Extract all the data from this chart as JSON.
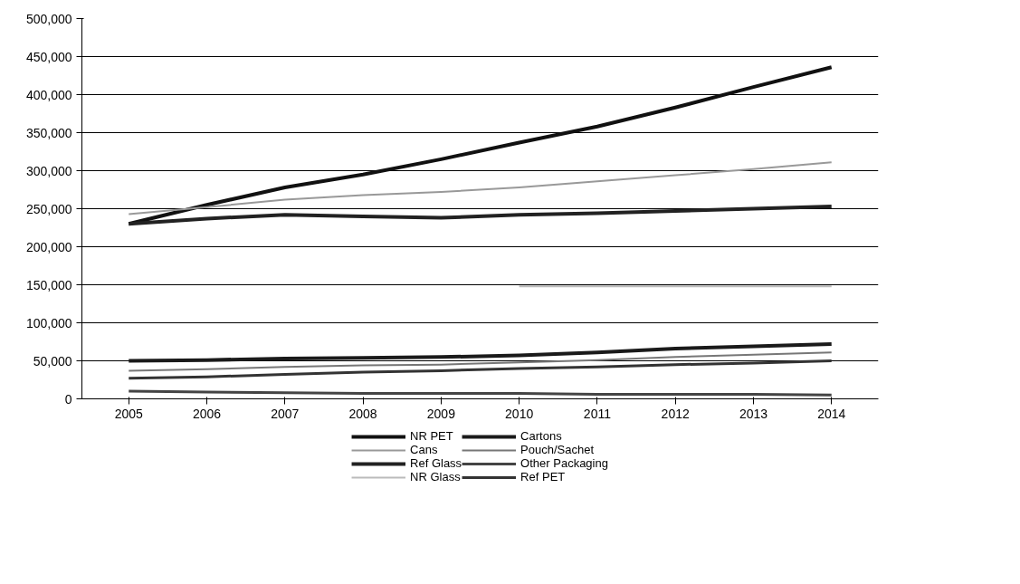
{
  "chart_data": {
    "type": "line",
    "categories": [
      "2005",
      "2006",
      "2007",
      "2008",
      "2009",
      "2010",
      "2011",
      "2012",
      "2013",
      "2014"
    ],
    "series": [
      {
        "name": "NR PET",
        "color": "#111111",
        "values": [
          230000,
          255000,
          278000,
          295000,
          315000,
          337000,
          358000,
          383000,
          410000,
          436000
        ]
      },
      {
        "name": "Cans",
        "color": "#999999",
        "values": [
          243000,
          252000,
          262000,
          268000,
          272000,
          278000,
          286000,
          294000,
          302000,
          311000
        ]
      },
      {
        "name": "Ref Glass",
        "color": "#222222",
        "values": [
          230000,
          237000,
          242000,
          240000,
          238000,
          242000,
          244000,
          247000,
          250000,
          253000
        ]
      },
      {
        "name": "NR Glass",
        "color": "#bbbbbb",
        "values": [
          null,
          null,
          null,
          null,
          null,
          148000,
          148000,
          148000,
          148000,
          148000
        ]
      },
      {
        "name": "Cartons",
        "color": "#1a1a1a",
        "values": [
          50000,
          51000,
          53000,
          54000,
          55000,
          57000,
          61000,
          66000,
          69000,
          72000
        ]
      },
      {
        "name": "Pouch/Sachet",
        "color": "#777777",
        "values": [
          37000,
          39000,
          42000,
          44000,
          45000,
          48000,
          51000,
          55000,
          58000,
          61000
        ]
      },
      {
        "name": "Other Packaging",
        "color": "#444444",
        "values": [
          10000,
          9000,
          8000,
          7000,
          7000,
          7000,
          6000,
          6000,
          6000,
          5000
        ]
      },
      {
        "name": "Ref PET",
        "color": "#333333",
        "values": [
          27000,
          29000,
          32000,
          35000,
          37000,
          40000,
          42000,
          45000,
          47000,
          50000
        ]
      }
    ],
    "ylim": [
      0,
      500000
    ],
    "yticks": [
      {
        "value": 0,
        "label": "0"
      },
      {
        "value": 50000,
        "label": "50,000"
      },
      {
        "value": 100000,
        "label": "100,000"
      },
      {
        "value": 150000,
        "label": "150,000"
      },
      {
        "value": 200000,
        "label": "200,000"
      },
      {
        "value": 250000,
        "label": "250,000"
      },
      {
        "value": 300000,
        "label": "300,000"
      },
      {
        "value": 350000,
        "label": "350,000"
      },
      {
        "value": 400000,
        "label": "400,000"
      },
      {
        "value": 450000,
        "label": "450,000"
      },
      {
        "value": 500000,
        "label": "500,000"
      }
    ],
    "grid": "y",
    "legend": "bottom",
    "marker": "none",
    "line_style": "solid"
  }
}
